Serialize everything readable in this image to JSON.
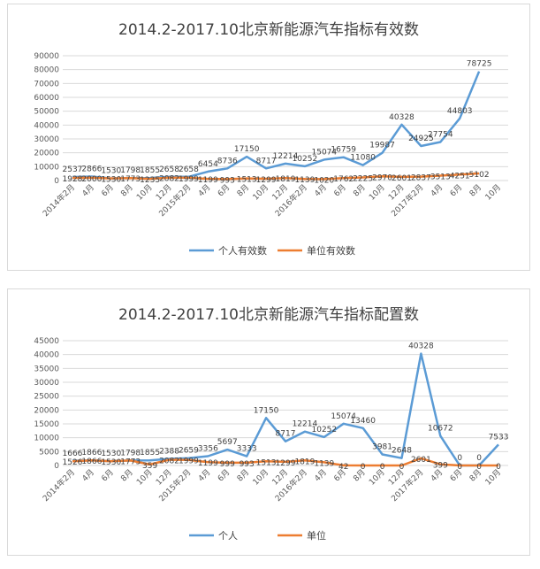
{
  "chart_data": [
    {
      "type": "line",
      "title": "2014.2-2017.10北京新能源汽车指标有效数",
      "categories": [
        "2014年2月",
        "4月",
        "6月",
        "8月",
        "10月",
        "12月",
        "2015年2月",
        "4月",
        "6月",
        "8月",
        "10月",
        "12月",
        "2016年2月",
        "4月",
        "6月",
        "8月",
        "10月",
        "12月",
        "2017年2月",
        "4月",
        "6月",
        "8月",
        "10月"
      ],
      "yticks": [
        "0",
        "10000",
        "20000",
        "30000",
        "40000",
        "50000",
        "60000",
        "70000",
        "80000",
        "90000"
      ],
      "ylim": [
        0,
        90000
      ],
      "series": [
        {
          "name": "个人有效数",
          "color": "#5b9bd5",
          "values": [
            2537,
            2866,
            1530,
            1798,
            1855,
            2658,
            2658,
            6454,
            8736,
            17150,
            8717,
            12214,
            10252,
            15074,
            16759,
            11080,
            19987,
            40328,
            24925,
            27754,
            44803,
            78725,
            null
          ],
          "labels": [
            "2537",
            "2866",
            "1530",
            "1798",
            "1855",
            "2658",
            "2658",
            "6454",
            "8736",
            "17150",
            "8717",
            "12214",
            "10252",
            "15074",
            "16759",
            "11080",
            "19987",
            "40328",
            "24925",
            "27754",
            "44803",
            "78725",
            ""
          ]
        },
        {
          "name": "单位有效数",
          "color": "#ed7d31",
          "values": [
            1928,
            2000,
            1530,
            1773,
            1235,
            2082,
            1999,
            1199,
            993,
            1513,
            1299,
            1819,
            1139,
            1020,
            1762,
            2225,
            2970,
            2601,
            2837,
            3513,
            4251,
            5102,
            null
          ],
          "labels": [
            "1928",
            "2000",
            "1530",
            "1773",
            "1235",
            "2082",
            "1999",
            "1199",
            "993",
            "1513",
            "1299",
            "1819",
            "1139",
            "1020",
            "1762",
            "2225",
            "2970",
            "2601",
            "2837",
            "3513",
            "4251",
            "5102",
            ""
          ]
        }
      ]
    },
    {
      "type": "line",
      "title": "2014.2-2017.10北京新能源汽车指标配置数",
      "categories": [
        "2014年2月",
        "4月",
        "6月",
        "8月",
        "10月",
        "12月",
        "2015年2月",
        "4月",
        "6月",
        "8月",
        "10月",
        "12月",
        "2016年2月",
        "4月",
        "6月",
        "8月",
        "10月",
        "12月",
        "2017年2月",
        "4月",
        "6月",
        "8月",
        "10月"
      ],
      "yticks": [
        "0",
        "5000",
        "10000",
        "15000",
        "20000",
        "25000",
        "30000",
        "35000",
        "40000",
        "45000"
      ],
      "ylim": [
        0,
        45000
      ],
      "series": [
        {
          "name": "个人",
          "color": "#5b9bd5",
          "values": [
            1666,
            1866,
            1530,
            1798,
            1855,
            2388,
            2659,
            3356,
            5697,
            3333,
            17150,
            8717,
            12214,
            10252,
            15074,
            13460,
            3981,
            2648,
            40328,
            10672,
            0,
            0,
            7533
          ],
          "labels": [
            "1666",
            "1866",
            "1530",
            "1798",
            "1855",
            "2388",
            "2659",
            "3356",
            "5697",
            "3333",
            "17150",
            "8717",
            "12214",
            "10252",
            "15074",
            "13460",
            "3981",
            "2648",
            "40328",
            "10672",
            "0",
            "0",
            "7533"
          ]
        },
        {
          "name": "单位",
          "color": "#ed7d31",
          "values": [
            1526,
            1866,
            1530,
            1773,
            359,
            2082,
            1999,
            1199,
            999,
            993,
            1513,
            1299,
            1819,
            1139,
            42,
            0,
            0,
            0,
            2601,
            399,
            0,
            0,
            0
          ],
          "labels": [
            "1526",
            "1866",
            "1530",
            "1773",
            "359",
            "2082",
            "1999",
            "1199",
            "999",
            "993",
            "1513",
            "1299",
            "1819",
            "1139",
            "42",
            "0",
            "0",
            "0",
            "2601",
            "399",
            "0",
            "0",
            "0"
          ]
        }
      ]
    }
  ]
}
